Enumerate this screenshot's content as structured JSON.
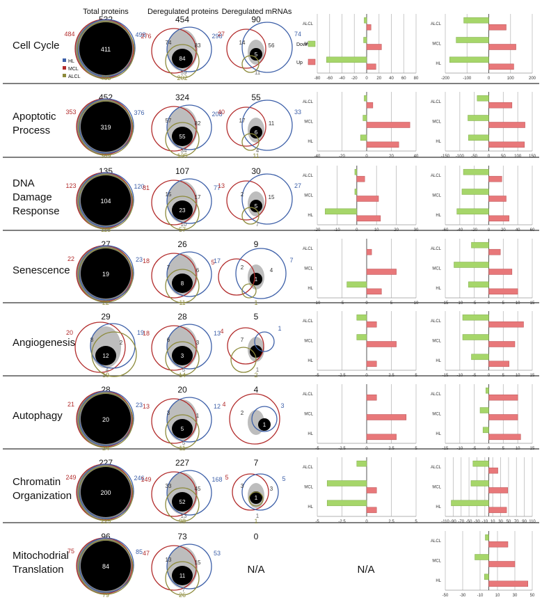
{
  "column_headers": [
    "Total proteins",
    "Deregulated proteins",
    "Deregulated mRNAs"
  ],
  "legend": {
    "venn": [
      {
        "name": "HL",
        "color": "#3c5fa8"
      },
      {
        "name": "MCL",
        "color": "#b22b2b"
      },
      {
        "name": "ALCL",
        "color": "#8c8a3a"
      }
    ],
    "bars": [
      {
        "name": "Down",
        "color": "#a6d66a"
      },
      {
        "name": "Up",
        "color": "#e8787a"
      }
    ]
  },
  "colors": {
    "HL": "#3c5fa8",
    "MCL": "#b22b2b",
    "ALCL": "#8c8a3a",
    "overlap": "#bdbdbd",
    "core": "#000000",
    "down": "#a6d66a",
    "up": "#e8787a"
  },
  "rows": [
    {
      "label": [
        "Cell Cycle"
      ],
      "venns": [
        {
          "total": "532",
          "mcl": "484",
          "hl": "498",
          "alcl": "485",
          "center": "411"
        },
        {
          "total": "454",
          "mcl": "276",
          "hl": "298",
          "alcl": "202",
          "inner": [
            "74",
            "83",
            "59"
          ],
          "center": "84"
        },
        {
          "total": "90",
          "mcl": "27",
          "hl": "74",
          "alcl": "",
          "inner": [
            "14",
            "56",
            "11"
          ],
          "center": "5"
        }
      ]
    },
    {
      "label": [
        "Apoptotic",
        "Process"
      ],
      "venns": [
        {
          "total": "452",
          "mcl": "353",
          "hl": "376",
          "alcl": "369",
          "center": "319"
        },
        {
          "total": "324",
          "mcl": "",
          "hl": "208",
          "alcl": "135",
          "inner": [
            "57",
            "82",
            "34"
          ],
          "center": "55"
        },
        {
          "total": "55",
          "mcl": "40",
          "hl": "33",
          "alcl": "11",
          "inner": [
            "17",
            "11",
            "4"
          ],
          "center": "6"
        }
      ]
    },
    {
      "label": [
        "DNA",
        "Damage",
        "Response"
      ],
      "venns": [
        {
          "total": "135",
          "mcl": "123",
          "hl": "120",
          "alcl": "115",
          "center": "104"
        },
        {
          "total": "107",
          "mcl": "81",
          "hl": "77",
          "alcl": "57",
          "inner": [
            "15",
            "17",
            "10"
          ],
          "center": "23"
        },
        {
          "total": "30",
          "mcl": "13",
          "hl": "27",
          "alcl": "",
          "inner": [
            "2",
            "15",
            "7"
          ],
          "center": "5"
        }
      ]
    },
    {
      "label": [
        "Senescence"
      ],
      "venns": [
        {
          "total": "27",
          "mcl": "22",
          "hl": "23",
          "alcl": "22",
          "center": "19"
        },
        {
          "total": "26",
          "mcl": "18",
          "hl": "17",
          "alcl": "11",
          "inner": [
            "7",
            "6",
            ""
          ],
          "center": "8"
        },
        {
          "total": "9",
          "mcl": "5",
          "hl": "7",
          "alcl": "1",
          "inner": [
            "2",
            "4",
            ""
          ],
          "center": "1"
        }
      ]
    },
    {
      "label": [
        "Angiogenesis"
      ],
      "venns": [
        {
          "total": "29",
          "mcl": "20",
          "hl": "19",
          "alcl": "19",
          "inner": [
            "8",
            "2",
            "4"
          ],
          "center": "12"
        },
        {
          "total": "28",
          "mcl": "18",
          "hl": "13",
          "alcl": "14",
          "inner": [
            "6",
            "3",
            "5"
          ],
          "center": "3"
        },
        {
          "total": "5",
          "mcl": "4",
          "hl": "1",
          "alcl": "2",
          "inner": [
            "7",
            "",
            "1"
          ],
          "center": ""
        }
      ]
    },
    {
      "label": [
        "Autophagy"
      ],
      "venns": [
        {
          "total": "28",
          "mcl": "21",
          "hl": "23",
          "alcl": "24",
          "center": "20"
        },
        {
          "total": "20",
          "mcl": "13",
          "hl": "12",
          "alcl": "11",
          "inner": [
            "3",
            "1",
            "5"
          ],
          "center": "5"
        },
        {
          "total": "4",
          "mcl": "4",
          "hl": "3",
          "alcl": "",
          "inner": [
            "2",
            "",
            ""
          ],
          "center": "1"
        }
      ]
    },
    {
      "label": [
        "Chromatin",
        "Organization"
      ],
      "venns": [
        {
          "total": "227",
          "mcl": "249",
          "hl": "246",
          "alcl": "225",
          "center": "200"
        },
        {
          "total": "227",
          "mcl": "149",
          "hl": "168",
          "alcl": "98",
          "inner": [
            "33",
            "45",
            "13"
          ],
          "center": "52"
        },
        {
          "total": "7",
          "mcl": "5",
          "hl": "5",
          "alcl": "1",
          "inner": [
            "3",
            "3",
            "1"
          ],
          "center": "1"
        }
      ]
    },
    {
      "label": [
        "Mitochodrial",
        "Translation"
      ],
      "venns": [
        {
          "total": "96",
          "mcl": "75",
          "hl": "85",
          "alcl": "79",
          "center": "84"
        },
        {
          "total": "73",
          "mcl": "47",
          "hl": "53",
          "alcl": "26",
          "inner": [
            "13",
            "15",
            "7"
          ],
          "center": "11"
        },
        {
          "total": "0",
          "na": "N/A"
        }
      ]
    }
  ],
  "chart_data": [
    {
      "type": "bar",
      "orientation": "horizontal",
      "row": "Cell Cycle",
      "data_source": "Deregulated mRNAs",
      "categories": [
        "ALCL",
        "MCL",
        "HL"
      ],
      "series": [
        {
          "name": "Down",
          "values": [
            -4,
            -5,
            -65
          ]
        },
        {
          "name": "Up",
          "values": [
            7,
            24,
            15
          ]
        }
      ],
      "xlim": [
        -80,
        80
      ],
      "xticks": [
        "-80",
        "-60",
        "-40",
        "-20",
        "0",
        "20",
        "40",
        "60",
        "80"
      ]
    },
    {
      "type": "bar",
      "orientation": "horizontal",
      "row": "Cell Cycle",
      "data_source": "Deregulated proteins",
      "categories": [
        "ALCL",
        "MCL",
        "HL"
      ],
      "series": [
        {
          "values": [
            -115,
            -150,
            -180
          ]
        },
        {
          "values": [
            80,
            125,
            115
          ]
        }
      ],
      "xlim": [
        -200,
        200
      ],
      "xticks": [
        "-200",
        "-100",
        "0",
        "100",
        "200"
      ]
    },
    {
      "type": "bar",
      "orientation": "horizontal",
      "row": "Apoptotic Process",
      "data_source": "Deregulated mRNAs",
      "categories": [
        "ALCL",
        "MCL",
        "HL"
      ],
      "series": [
        {
          "values": [
            -2,
            -3,
            -5
          ]
        },
        {
          "values": [
            5,
            35,
            26
          ]
        }
      ],
      "xlim": [
        -40,
        40
      ],
      "xticks": [
        "-40",
        "-20",
        "0",
        "20",
        "40"
      ]
    },
    {
      "type": "bar",
      "orientation": "horizontal",
      "row": "Apoptotic Process",
      "data_source": "Deregulated proteins",
      "categories": [
        "ALCL",
        "MCL",
        "HL"
      ],
      "series": [
        {
          "values": [
            -40,
            -72,
            -70
          ]
        },
        {
          "values": [
            80,
            125,
            123
          ]
        }
      ],
      "xlim": [
        -150,
        150
      ],
      "xticks": [
        "-150",
        "-100",
        "-50",
        "0",
        "50",
        "100",
        "150"
      ]
    },
    {
      "type": "bar",
      "orientation": "horizontal",
      "row": "DNA Damage Response",
      "data_source": "Deregulated mRNAs",
      "categories": [
        "ALCL",
        "MCL",
        "HL"
      ],
      "series": [
        {
          "values": [
            -1,
            -1,
            -16
          ]
        },
        {
          "values": [
            4,
            11,
            12
          ]
        }
      ],
      "xlim": [
        -20,
        30
      ],
      "xticks": [
        "-20",
        "-10",
        "0",
        "10",
        "20",
        "30"
      ]
    },
    {
      "type": "bar",
      "orientation": "horizontal",
      "row": "DNA Damage Response",
      "data_source": "Deregulated proteins",
      "categories": [
        "ALCL",
        "MCL",
        "HL"
      ],
      "series": [
        {
          "values": [
            -35,
            -37,
            -44
          ]
        },
        {
          "values": [
            18,
            24,
            28
          ]
        }
      ],
      "xlim": [
        -60,
        60
      ],
      "xticks": [
        "-60",
        "-40",
        "-20",
        "0",
        "20",
        "40",
        "60"
      ]
    },
    {
      "type": "bar",
      "orientation": "horizontal",
      "row": "Senescence",
      "data_source": "Deregulated mRNAs",
      "categories": [
        "ALCL",
        "MCL",
        "HL"
      ],
      "series": [
        {
          "values": [
            0,
            0,
            -4
          ]
        },
        {
          "values": [
            1,
            6,
            3
          ]
        }
      ],
      "xlim": [
        -10,
        10
      ],
      "xticks": [
        "-10",
        "-5",
        "0",
        "5",
        "10"
      ]
    },
    {
      "type": "bar",
      "orientation": "horizontal",
      "row": "Senescence",
      "data_source": "Deregulated proteins",
      "categories": [
        "ALCL",
        "MCL",
        "HL"
      ],
      "series": [
        {
          "values": [
            -6,
            -12,
            -7
          ]
        },
        {
          "values": [
            4,
            8,
            10
          ]
        }
      ],
      "xlim": [
        -15,
        15
      ],
      "xticks": [
        "-15",
        "-10",
        "-5",
        "0",
        "5",
        "10",
        "15"
      ]
    },
    {
      "type": "bar",
      "orientation": "horizontal",
      "row": "Angiogenesis",
      "data_source": "Deregulated mRNAs",
      "categories": [
        "ALCL",
        "MCL",
        "HL"
      ],
      "series": [
        {
          "values": [
            -1,
            -1,
            0
          ]
        },
        {
          "values": [
            1,
            3,
            1
          ]
        }
      ],
      "xlim": [
        -5,
        5
      ],
      "xticks": [
        "-5",
        "-2.5",
        "0",
        "2.5",
        "5"
      ]
    },
    {
      "type": "bar",
      "orientation": "horizontal",
      "row": "Angiogenesis",
      "data_source": "Deregulated proteins",
      "categories": [
        "ALCL",
        "MCL",
        "HL"
      ],
      "series": [
        {
          "values": [
            -9,
            -9,
            -6
          ]
        },
        {
          "values": [
            12,
            9,
            7
          ]
        }
      ],
      "xlim": [
        -15,
        15
      ],
      "xticks": [
        "-15",
        "-10",
        "-5",
        "0",
        "5",
        "10",
        "15"
      ]
    },
    {
      "type": "bar",
      "orientation": "horizontal",
      "row": "Autophagy",
      "data_source": "Deregulated mRNAs",
      "categories": [
        "ALCL",
        "MCL",
        "HL"
      ],
      "series": [
        {
          "values": [
            0,
            0,
            0
          ]
        },
        {
          "values": [
            1,
            4,
            3
          ]
        }
      ],
      "xlim": [
        -5,
        5
      ],
      "xticks": [
        "-5",
        "-2.5",
        "0",
        "2.5",
        "5"
      ]
    },
    {
      "type": "bar",
      "orientation": "horizontal",
      "row": "Autophagy",
      "data_source": "Deregulated proteins",
      "categories": [
        "ALCL",
        "MCL",
        "HL"
      ],
      "series": [
        {
          "values": [
            -1,
            -3,
            -2
          ]
        },
        {
          "values": [
            10,
            10,
            11
          ]
        }
      ],
      "xlim": [
        -15,
        15
      ],
      "xticks": [
        "-15",
        "-10",
        "-5",
        "0",
        "5",
        "10",
        "15"
      ]
    },
    {
      "type": "bar",
      "orientation": "horizontal",
      "row": "Chromatin Organization",
      "data_source": "Deregulated mRNAs",
      "categories": [
        "ALCL",
        "MCL",
        "HL"
      ],
      "series": [
        {
          "values": [
            -1,
            -4,
            -4
          ]
        },
        {
          "values": [
            0,
            1,
            1
          ]
        }
      ],
      "xlim": [
        -5,
        5
      ],
      "xticks": [
        "-5",
        "-2.5",
        "0",
        "2.5",
        "5"
      ]
    },
    {
      "type": "bar",
      "orientation": "horizontal",
      "row": "Chromatin Organization",
      "data_source": "Deregulated proteins",
      "categories": [
        "ALCL",
        "MCL",
        "HL"
      ],
      "series": [
        {
          "values": [
            -40,
            -45,
            -95
          ]
        },
        {
          "values": [
            23,
            48,
            45
          ]
        }
      ],
      "xlim": [
        -110,
        110
      ],
      "xticks": [
        "-110",
        "-90",
        "-70",
        "-50",
        "-30",
        "-10",
        "10",
        "30",
        "50",
        "70",
        "90",
        "110"
      ]
    },
    {
      "type": "bar",
      "orientation": "horizontal",
      "row": "Mitochodrial Translation",
      "data_source": "Deregulated mRNAs",
      "na": "N/A"
    },
    {
      "type": "bar",
      "orientation": "horizontal",
      "row": "Mitochodrial Translation",
      "data_source": "Deregulated proteins",
      "categories": [
        "ALCL",
        "MCL",
        "HL"
      ],
      "series": [
        {
          "values": [
            -4,
            -16,
            -5
          ]
        },
        {
          "values": [
            22,
            30,
            45
          ]
        }
      ],
      "xlim": [
        -50,
        50
      ],
      "xticks": [
        "-50",
        "-30",
        "-10",
        "10",
        "30",
        "50"
      ]
    }
  ]
}
